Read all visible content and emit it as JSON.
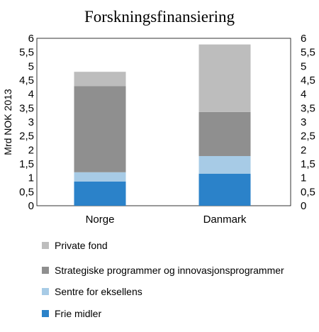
{
  "chart_data": {
    "type": "bar",
    "stacked": true,
    "title": "Forskningsfinansiering",
    "ylabel": "Mrd NOK 2013",
    "xlabel": "",
    "ylim": [
      0,
      6
    ],
    "yticks": [
      "0",
      "0,5",
      "1",
      "1,5",
      "2",
      "2,5",
      "3",
      "3,5",
      "4",
      "4,5",
      "5",
      "5,5",
      "6"
    ],
    "secondary_axis": true,
    "grid": false,
    "legend_position": "bottom",
    "categories": [
      "Norge",
      "Danmark"
    ],
    "series": [
      {
        "name": "Frie midler",
        "color": "#2b82c9",
        "values": [
          0.87,
          1.15
        ]
      },
      {
        "name": "Sentre for eksellens",
        "color": "#a7cbe6",
        "values": [
          0.33,
          0.63
        ]
      },
      {
        "name": "Strategiske programmer og innovasjonsprogrammer",
        "color": "#8f8f8f",
        "values": [
          3.09,
          1.58
        ]
      },
      {
        "name": "Private fond",
        "color": "#bdbdbd",
        "values": [
          0.51,
          2.42
        ]
      }
    ]
  }
}
